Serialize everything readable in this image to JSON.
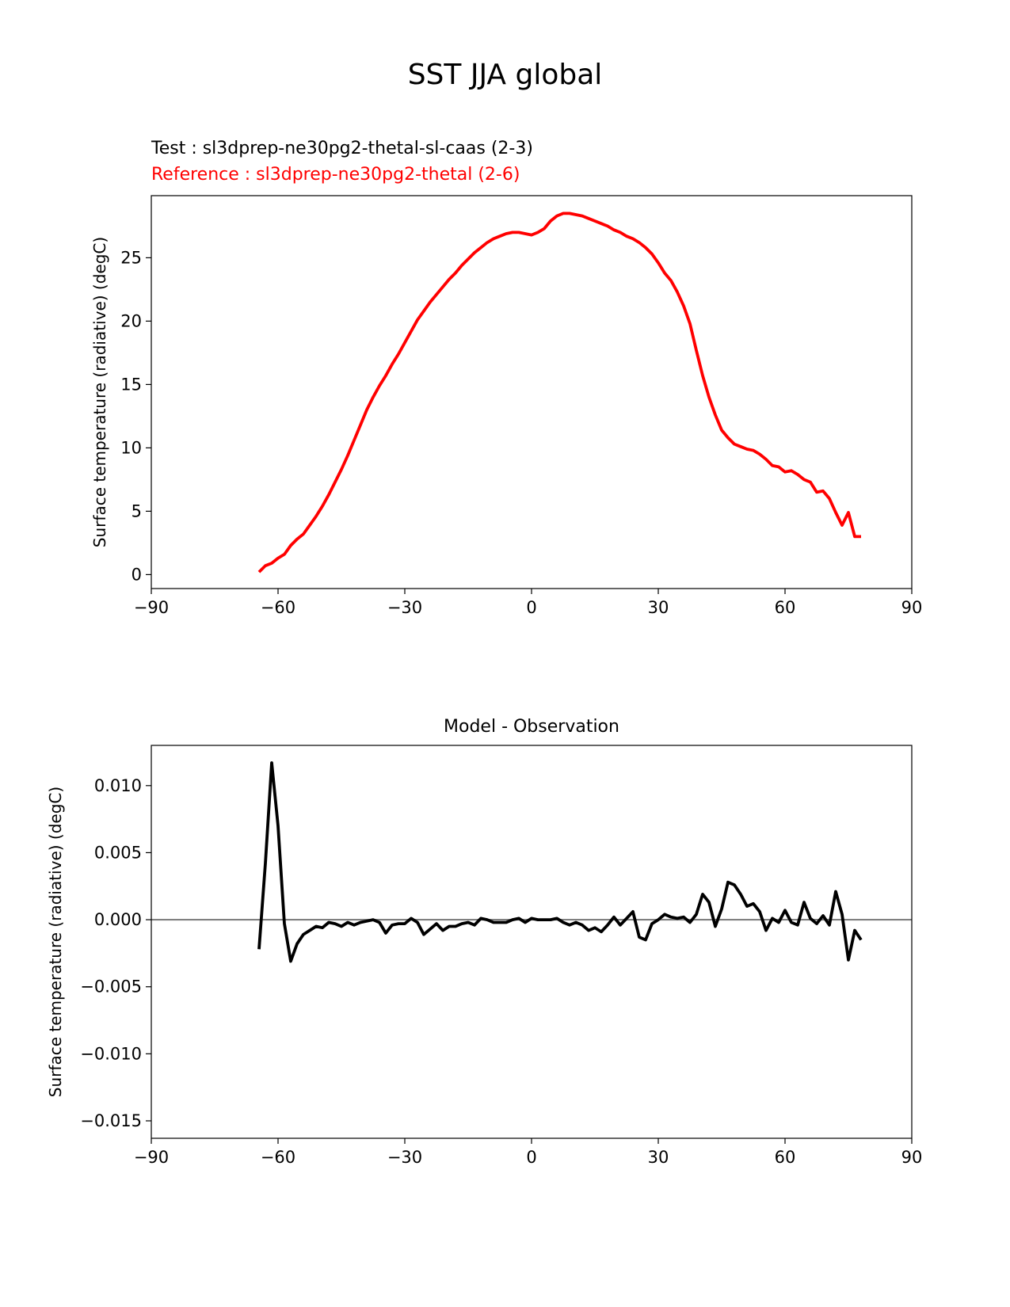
{
  "title": "SST JJA global",
  "legend": {
    "test": "Test : sl3dprep-ne30pg2-thetal-sl-caas (2-3)",
    "reference": "Reference : sl3dprep-ne30pg2-thetal (2-6)"
  },
  "colors": {
    "reference": "#ff0000",
    "difference": "#000000",
    "zero_line": "#808080"
  },
  "chart_data": [
    {
      "type": "line",
      "title": "",
      "xlabel": "",
      "ylabel": "Surface temperature (radiative) (degC)",
      "xlim": [
        -90,
        90
      ],
      "ylim": [
        -1.1,
        29.9
      ],
      "xticks": [
        -90,
        -60,
        -30,
        0,
        30,
        60,
        90
      ],
      "xtick_labels": [
        "−90",
        "−60",
        "−30",
        "0",
        "30",
        "60",
        "90"
      ],
      "yticks": [
        0,
        5,
        10,
        15,
        20,
        25
      ],
      "ytick_labels": [
        "0",
        "5",
        "10",
        "15",
        "20",
        "25"
      ],
      "grid": false,
      "series": [
        {
          "name": "Reference : sl3dprep-ne30pg2-thetal (2-6)",
          "color": "#ff0000",
          "x": [
            -64.5,
            -63,
            -61.5,
            -60,
            -58.5,
            -57,
            -55.5,
            -54,
            -52.5,
            -51,
            -49.5,
            -48,
            -46.5,
            -45,
            -43.5,
            -42,
            -40.5,
            -39,
            -37.5,
            -36,
            -34.5,
            -33,
            -31.5,
            -30,
            -28.5,
            -27,
            -25.5,
            -24,
            -22.5,
            -21,
            -19.5,
            -18,
            -16.5,
            -15,
            -13.5,
            -12,
            -10.5,
            -9,
            -7.5,
            -6,
            -4.5,
            -3,
            -1.5,
            0,
            1.5,
            3,
            4.5,
            6,
            7.5,
            9,
            10.5,
            12,
            13.5,
            15,
            16.5,
            18,
            19.5,
            21,
            22.5,
            24,
            25.5,
            27,
            28.5,
            30,
            31.5,
            33,
            34.5,
            36,
            37.5,
            39,
            40.5,
            42,
            43.5,
            45,
            46.5,
            48,
            49.5,
            51,
            52.5,
            54,
            55.5,
            57,
            58.5,
            60,
            61.5,
            63,
            64.5,
            66,
            67.5,
            69,
            70.5,
            72,
            73.5,
            75,
            76.5,
            78
          ],
          "y": [
            0.2,
            0.7,
            0.9,
            1.3,
            1.6,
            2.3,
            2.8,
            3.2,
            3.9,
            4.6,
            5.4,
            6.3,
            7.3,
            8.3,
            9.4,
            10.6,
            11.8,
            13.0,
            14.0,
            14.9,
            15.7,
            16.6,
            17.4,
            18.3,
            19.2,
            20.1,
            20.8,
            21.5,
            22.1,
            22.7,
            23.3,
            23.8,
            24.4,
            24.9,
            25.4,
            25.8,
            26.2,
            26.5,
            26.7,
            26.9,
            27.0,
            27.0,
            26.9,
            26.8,
            27.0,
            27.3,
            27.9,
            28.3,
            28.5,
            28.5,
            28.4,
            28.3,
            28.1,
            27.9,
            27.7,
            27.5,
            27.2,
            27.0,
            26.7,
            26.5,
            26.2,
            25.8,
            25.3,
            24.6,
            23.8,
            23.2,
            22.3,
            21.2,
            19.8,
            17.7,
            15.7,
            14.0,
            12.6,
            11.4,
            10.8,
            10.3,
            10.1,
            9.9,
            9.8,
            9.5,
            9.1,
            8.6,
            8.5,
            8.1,
            8.2,
            7.9,
            7.5,
            7.3,
            6.5,
            6.6,
            6.0,
            4.9,
            3.9,
            4.9,
            3.0,
            3.0
          ]
        }
      ]
    },
    {
      "type": "line",
      "title": "Model - Observation",
      "xlabel": "",
      "ylabel": "Surface temperature (radiative) (degC)",
      "xlim": [
        -90,
        90
      ],
      "ylim": [
        -0.0163,
        0.013
      ],
      "xticks": [
        -90,
        -60,
        -30,
        0,
        30,
        60,
        90
      ],
      "xtick_labels": [
        "−90",
        "−60",
        "−30",
        "0",
        "30",
        "60",
        "90"
      ],
      "yticks": [
        0.01,
        0.005,
        0.0,
        -0.005,
        -0.01,
        -0.015
      ],
      "ytick_labels": [
        "0.010",
        "0.005",
        "0.000",
        "−0.005",
        "−0.010",
        "−0.015"
      ],
      "grid": false,
      "zero_line": 0,
      "series": [
        {
          "name": "",
          "color": "#000000",
          "x": [
            -64.5,
            -63,
            -61.5,
            -60,
            -58.5,
            -57,
            -55.5,
            -54,
            -52.5,
            -51,
            -49.5,
            -48,
            -46.5,
            -45,
            -43.5,
            -42,
            -40.5,
            -39,
            -37.5,
            -36,
            -34.5,
            -33,
            -31.5,
            -30,
            -28.5,
            -27,
            -25.5,
            -24,
            -22.5,
            -21,
            -19.5,
            -18,
            -16.5,
            -15,
            -13.5,
            -12,
            -10.5,
            -9,
            -7.5,
            -6,
            -4.5,
            -3,
            -1.5,
            0,
            1.5,
            3,
            4.5,
            6,
            7.5,
            9,
            10.5,
            12,
            13.5,
            15,
            16.5,
            18,
            19.5,
            21,
            22.5,
            24,
            25.5,
            27,
            28.5,
            30,
            31.5,
            33,
            34.5,
            36,
            37.5,
            39,
            40.5,
            42,
            43.5,
            45,
            46.5,
            48,
            49.5,
            51,
            52.5,
            54,
            55.5,
            57,
            58.5,
            60,
            61.5,
            63,
            64.5,
            66,
            67.5,
            69,
            70.5,
            72,
            73.5,
            75,
            76.5,
            78
          ],
          "y": [
            -0.0022,
            0.0042,
            0.0117,
            0.007,
            -0.0003,
            -0.0031,
            -0.0018,
            -0.0011,
            -0.0008,
            -0.0005,
            -0.0006,
            -0.0002,
            -0.0003,
            -0.0005,
            -0.0002,
            -0.0004,
            -0.0002,
            -0.0001,
            0.0,
            -0.0002,
            -0.001,
            -0.0004,
            -0.0003,
            -0.0003,
            0.0001,
            -0.0002,
            -0.0011,
            -0.0007,
            -0.0003,
            -0.0008,
            -0.0005,
            -0.0005,
            -0.0003,
            -0.0002,
            -0.0004,
            0.0001,
            0.0,
            -0.0002,
            -0.0002,
            -0.0002,
            0.0,
            0.0001,
            -0.0002,
            0.0001,
            0.0,
            0.0,
            0.0,
            0.0001,
            -0.0002,
            -0.0004,
            -0.0002,
            -0.0004,
            -0.0008,
            -0.0006,
            -0.0009,
            -0.0004,
            0.0002,
            -0.0004,
            0.0001,
            0.0006,
            -0.0013,
            -0.0015,
            -0.0003,
            0.0,
            0.0004,
            0.0002,
            0.0001,
            0.0002,
            -0.0002,
            0.0004,
            0.0019,
            0.0013,
            -0.0005,
            0.0008,
            0.0028,
            0.0026,
            0.0019,
            0.001,
            0.0012,
            0.0006,
            -0.0008,
            0.0001,
            -0.0002,
            0.0007,
            -0.0002,
            -0.0004,
            0.0013,
            0.0001,
            -0.0003,
            0.0003,
            -0.0004,
            0.0021,
            0.0004,
            -0.003,
            -0.0008,
            -0.0015
          ]
        }
      ]
    }
  ]
}
